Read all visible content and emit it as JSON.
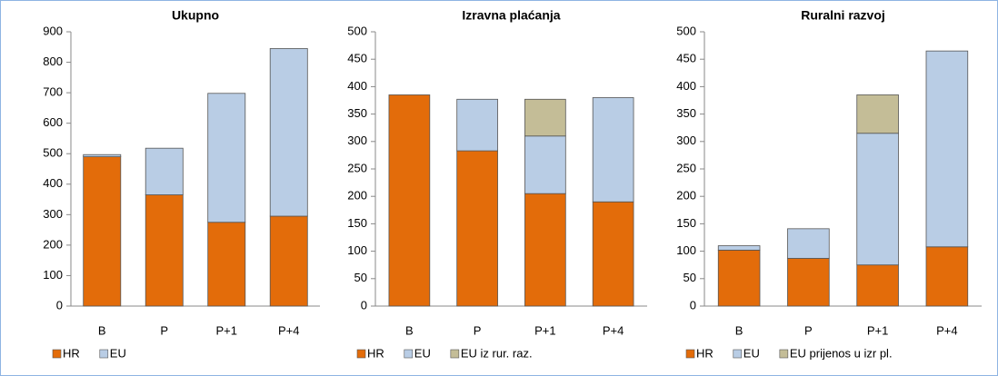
{
  "chart_data": [
    {
      "type": "stacked-bar",
      "title": "Ukupno",
      "categories": [
        "B",
        "P",
        "P+1",
        "P+4"
      ],
      "series": [
        {
          "name": "HR",
          "color": "#e36c0a",
          "values": [
            490,
            365,
            275,
            295
          ]
        },
        {
          "name": "EU",
          "color": "#b9cde5",
          "values": [
            7,
            153,
            423,
            550
          ]
        }
      ],
      "ylim": [
        0,
        900
      ],
      "yticks": [
        0,
        100,
        200,
        300,
        400,
        500,
        600,
        700,
        800,
        900
      ]
    },
    {
      "type": "stacked-bar",
      "title": "Izravna plaćanja",
      "categories": [
        "B",
        "P",
        "P+1",
        "P+4"
      ],
      "series": [
        {
          "name": "HR",
          "color": "#e36c0a",
          "values": [
            385,
            283,
            205,
            190
          ]
        },
        {
          "name": "EU",
          "color": "#b9cde5",
          "values": [
            0,
            94,
            105,
            190
          ]
        },
        {
          "name": "EU iz rur. raz.",
          "color": "#c4bd97",
          "values": [
            0,
            0,
            67,
            0
          ]
        }
      ],
      "ylim": [
        0,
        500
      ],
      "yticks": [
        0,
        50,
        100,
        150,
        200,
        250,
        300,
        350,
        400,
        450,
        500
      ]
    },
    {
      "type": "stacked-bar",
      "title": "Ruralni razvoj",
      "categories": [
        "B",
        "P",
        "P+1",
        "P+4"
      ],
      "series": [
        {
          "name": "HR",
          "color": "#e36c0a",
          "values": [
            102,
            87,
            75,
            108
          ]
        },
        {
          "name": "EU",
          "color": "#b9cde5",
          "values": [
            8,
            54,
            240,
            357
          ]
        },
        {
          "name": "EU prijenos u izr pl.",
          "color": "#c4bd97",
          "values": [
            0,
            0,
            70,
            0
          ]
        }
      ],
      "ylim": [
        0,
        500
      ],
      "yticks": [
        0,
        50,
        100,
        150,
        200,
        250,
        300,
        350,
        400,
        450,
        500
      ]
    }
  ]
}
